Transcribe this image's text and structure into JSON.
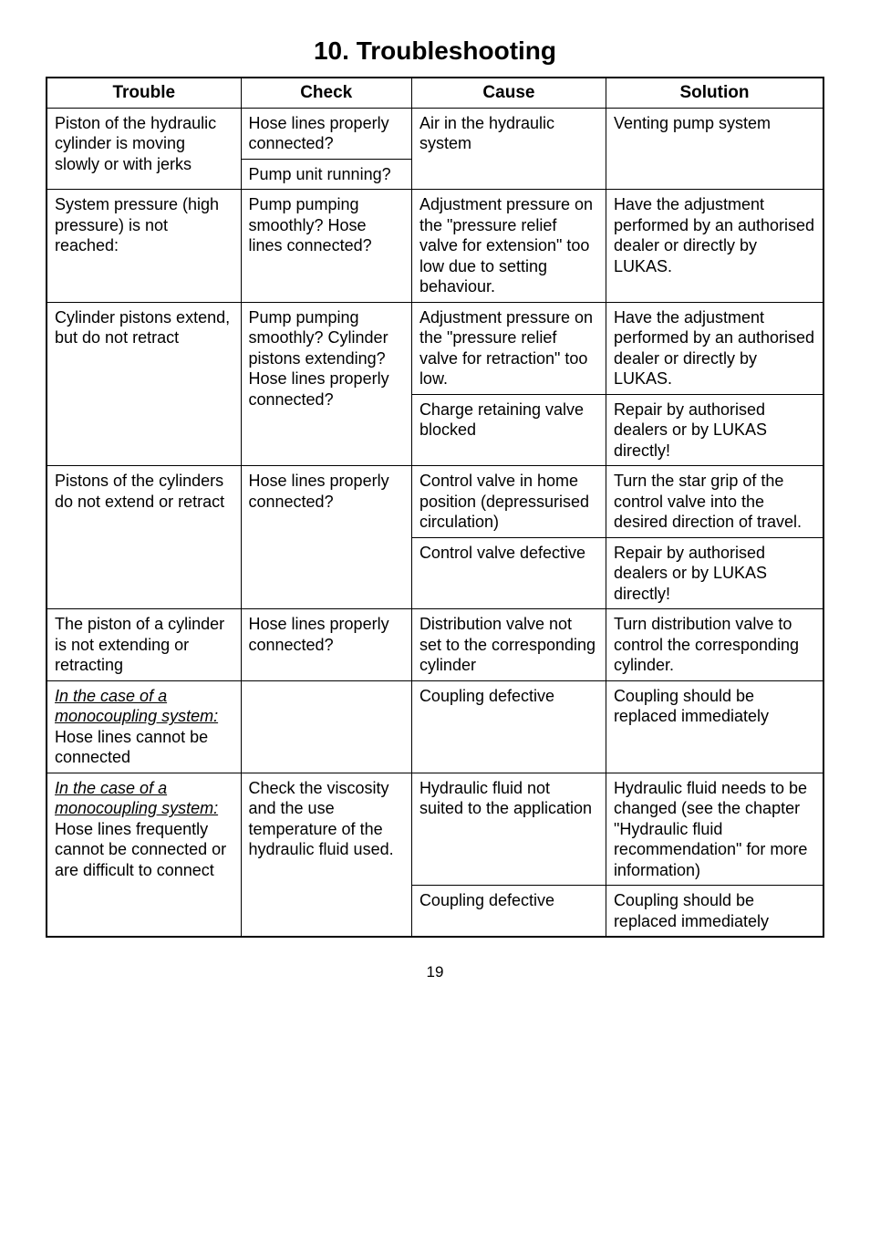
{
  "title": "10.  Troubleshooting",
  "page_number": "19",
  "headers": {
    "trouble": "Trouble",
    "check": "Check",
    "cause": "Cause",
    "solution": "Solution"
  },
  "rows": {
    "r1_trouble": "Piston of the hydraulic cylinder is moving slowly or with jerks",
    "r1_check1": "Hose lines properly connected?",
    "r1_check2": "Pump unit running?",
    "r1_cause": "Air in the hydraulic system",
    "r1_solution": "Venting pump system",
    "r2_trouble": "System pressure (high pressure) is not reached:",
    "r2_check": "Pump pumping smoothly? Hose lines connected?",
    "r2_cause": "Adjustment pressure on the \"pressure relief valve for extension\" too low due to setting behaviour.",
    "r2_solution": "Have the adjustment performed by an authorised dealer or directly by LUKAS.",
    "r3_trouble": "Cylinder pistons extend, but do not retract",
    "r3_check": "Pump pumping smoothly? Cylinder pistons extending? Hose lines properly connected?",
    "r3_cause1": "Adjustment pressure on the \"pressure relief valve for retraction\" too low.",
    "r3_solution1": "Have the adjustment performed by an authorised dealer or directly by LUKAS.",
    "r3_cause2": "Charge retaining valve blocked",
    "r3_solution2": "Repair by authorised dealers or by LUKAS directly!",
    "r4_trouble": "Pistons of the cylinders do not extend or retract",
    "r4_check": "Hose lines properly connected?",
    "r4_cause1": "Control valve in home position (depressurised circulation)",
    "r4_solution1": "Turn the star grip of the control valve into the desired direction of travel.",
    "r4_cause2": "Control valve defective",
    "r4_solution2": "Repair by authorised dealers or by LUKAS directly!",
    "r5_trouble": "The piston of a cylinder is not extending or retracting",
    "r5_check": "Hose lines properly connected?",
    "r5_cause": "Distribution valve not set to the corresponding cylinder",
    "r5_solution": "Turn distribution valve to control the corresponding cylinder.",
    "r6_trouble_u": "In the case of a monocoupling system:",
    "r6_trouble_rest": " Hose lines cannot be connected",
    "r6_cause": "Coupling defective",
    "r6_solution": "Coupling should be replaced immediately",
    "r7_trouble_u": "In the case of a monocoupling system:",
    "r7_trouble_rest": " Hose lines frequently cannot be connected or are difficult to connect",
    "r7_check": "Check the viscosity and the use temperature of the hydraulic fluid used.",
    "r7_cause1": "Hydraulic fluid not suited to the application",
    "r7_solution1": "Hydraulic fluid needs to be changed (see the chapter \"Hydraulic fluid recommendation\" for more information)",
    "r7_cause2": "Coupling defective",
    "r7_solution2": "Coupling should be replaced immediately"
  }
}
